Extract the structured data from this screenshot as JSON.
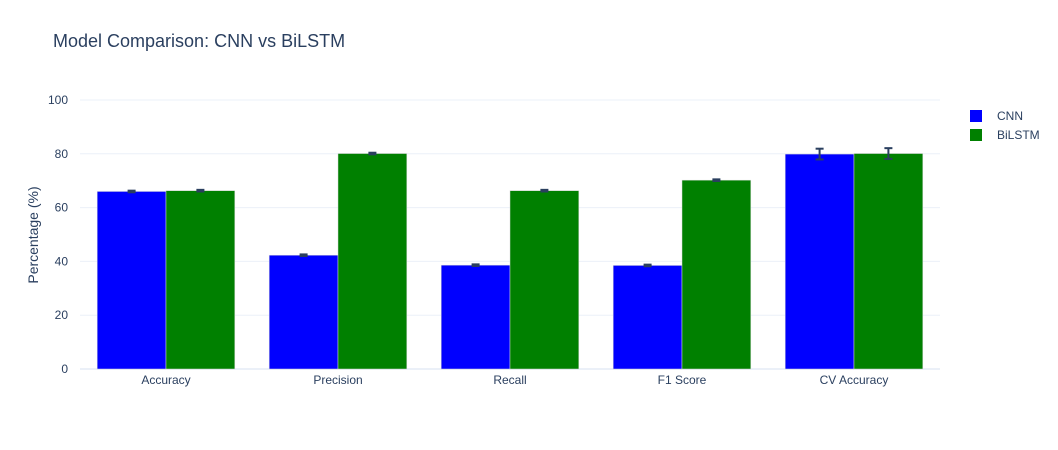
{
  "chart_data": {
    "type": "bar",
    "title": "Model Comparison: CNN vs BiLSTM",
    "xlabel": "",
    "ylabel": "Percentage (%)",
    "ylim": [
      0,
      100
    ],
    "yticks": [
      0,
      20,
      40,
      60,
      80,
      100
    ],
    "categories": [
      "Accuracy",
      "Precision",
      "Recall",
      "F1 Score",
      "CV Accuracy"
    ],
    "series": [
      {
        "name": "CNN",
        "color": "#0000ff",
        "values": [
          66.0,
          42.3,
          38.6,
          38.5,
          79.9
        ],
        "errors": [
          0.3,
          0.3,
          0.3,
          0.3,
          2.0
        ]
      },
      {
        "name": "BiLSTM",
        "color": "#008000",
        "values": [
          66.3,
          80.1,
          66.3,
          70.2,
          80.1
        ],
        "errors": [
          0.3,
          0.3,
          0.3,
          0.3,
          2.0
        ]
      }
    ],
    "grid": true,
    "legend_position": "top-right"
  }
}
